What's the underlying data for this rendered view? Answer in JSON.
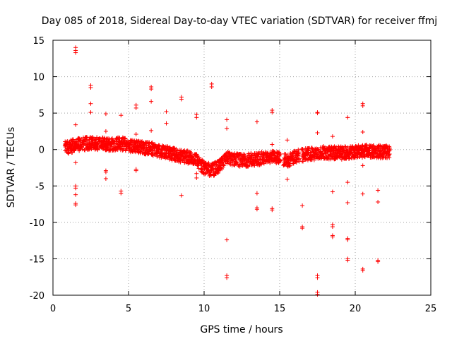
{
  "chart_data": {
    "type": "scatter",
    "title": "Day 085 of 2018, Sidereal Day-to-day VTEC variation (SDTVAR) for receiver ffmj",
    "xlabel": "GPS time / hours",
    "ylabel": "SDTVAR / TECUs",
    "xlim": [
      0,
      25
    ],
    "ylim": [
      -20,
      15
    ],
    "xticks": [
      0,
      5,
      10,
      15,
      20,
      25
    ],
    "yticks": [
      -20,
      -15,
      -10,
      -5,
      0,
      5,
      10,
      15
    ],
    "grid": true,
    "marker": "+",
    "color": "#ff0000",
    "series": [
      {
        "name": "SDTVAR",
        "trend": [
          [
            0.8,
            0.2
          ],
          [
            1.5,
            0.6
          ],
          [
            2.5,
            0.9
          ],
          [
            3.5,
            0.7
          ],
          [
            4.5,
            0.8
          ],
          [
            5.5,
            0.4
          ],
          [
            6.5,
            0.1
          ],
          [
            7.5,
            -0.4
          ],
          [
            8.5,
            -0.9
          ],
          [
            9.5,
            -1.3
          ],
          [
            10.0,
            -2.6
          ],
          [
            10.5,
            -2.8
          ],
          [
            11.0,
            -2.4
          ],
          [
            11.5,
            -1.2
          ],
          [
            12.5,
            -1.5
          ],
          [
            13.5,
            -1.3
          ],
          [
            14.5,
            -1.0
          ],
          [
            15.0,
            -1.1
          ],
          [
            15.5,
            -1.6
          ],
          [
            16.0,
            -1.0
          ],
          [
            17.0,
            -0.6
          ],
          [
            18.0,
            -0.4
          ],
          [
            19.0,
            -0.5
          ],
          [
            20.0,
            -0.3
          ],
          [
            21.0,
            -0.2
          ],
          [
            22.3,
            -0.4
          ]
        ],
        "outliers": [
          [
            1.5,
            14.0
          ],
          [
            1.5,
            13.6
          ],
          [
            1.5,
            13.3
          ],
          [
            1.5,
            3.4
          ],
          [
            1.5,
            -1.8
          ],
          [
            1.5,
            -5.0
          ],
          [
            1.5,
            -5.3
          ],
          [
            1.5,
            -6.2
          ],
          [
            1.5,
            -7.4
          ],
          [
            1.5,
            -7.6
          ],
          [
            2.5,
            8.8
          ],
          [
            2.5,
            8.5
          ],
          [
            2.5,
            6.3
          ],
          [
            2.5,
            5.1
          ],
          [
            3.5,
            4.9
          ],
          [
            3.5,
            2.5
          ],
          [
            3.5,
            -2.9
          ],
          [
            3.5,
            -3.1
          ],
          [
            3.5,
            -4.0
          ],
          [
            4.5,
            4.7
          ],
          [
            4.5,
            -5.7
          ],
          [
            4.5,
            -6.0
          ],
          [
            5.5,
            6.1
          ],
          [
            5.5,
            5.7
          ],
          [
            5.5,
            2.1
          ],
          [
            5.5,
            -2.7
          ],
          [
            5.5,
            -2.9
          ],
          [
            6.5,
            8.6
          ],
          [
            6.5,
            8.3
          ],
          [
            6.5,
            6.6
          ],
          [
            6.5,
            2.6
          ],
          [
            7.5,
            5.2
          ],
          [
            7.5,
            3.6
          ],
          [
            8.5,
            7.2
          ],
          [
            8.5,
            6.9
          ],
          [
            8.5,
            -6.3
          ],
          [
            9.5,
            4.8
          ],
          [
            9.5,
            4.4
          ],
          [
            9.5,
            -3.3
          ],
          [
            9.5,
            -3.9
          ],
          [
            10.5,
            9.0
          ],
          [
            10.5,
            8.6
          ],
          [
            11.5,
            4.1
          ],
          [
            11.5,
            2.9
          ],
          [
            11.5,
            -12.4
          ],
          [
            11.5,
            -17.3
          ],
          [
            11.5,
            -17.6
          ],
          [
            13.5,
            3.8
          ],
          [
            13.5,
            -6.0
          ],
          [
            13.5,
            -8.0
          ],
          [
            13.5,
            -8.2
          ],
          [
            14.5,
            5.4
          ],
          [
            14.5,
            5.1
          ],
          [
            14.5,
            0.7
          ],
          [
            14.5,
            -8.1
          ],
          [
            14.5,
            -8.3
          ],
          [
            15.5,
            1.3
          ],
          [
            15.5,
            -4.1
          ],
          [
            16.5,
            -7.7
          ],
          [
            16.5,
            -10.6
          ],
          [
            16.5,
            -10.8
          ],
          [
            17.5,
            5.1
          ],
          [
            17.5,
            5.0
          ],
          [
            17.5,
            2.3
          ],
          [
            17.5,
            -17.3
          ],
          [
            17.5,
            -17.6
          ],
          [
            17.5,
            -19.6
          ],
          [
            17.5,
            -19.9
          ],
          [
            18.5,
            1.8
          ],
          [
            18.5,
            -5.8
          ],
          [
            18.5,
            -10.3
          ],
          [
            18.5,
            -10.6
          ],
          [
            18.5,
            -11.8
          ],
          [
            18.5,
            -12.0
          ],
          [
            19.5,
            4.4
          ],
          [
            19.5,
            -4.5
          ],
          [
            19.5,
            -7.3
          ],
          [
            19.5,
            -12.2
          ],
          [
            19.5,
            -12.4
          ],
          [
            19.5,
            -15.0
          ],
          [
            19.5,
            -15.2
          ],
          [
            20.5,
            6.3
          ],
          [
            20.5,
            6.0
          ],
          [
            20.5,
            2.4
          ],
          [
            20.5,
            -2.2
          ],
          [
            20.5,
            -6.1
          ],
          [
            20.5,
            -16.4
          ],
          [
            20.5,
            -16.6
          ],
          [
            21.5,
            -5.6
          ],
          [
            21.5,
            -7.2
          ],
          [
            21.5,
            -15.2
          ],
          [
            21.5,
            -15.4
          ]
        ]
      }
    ]
  }
}
